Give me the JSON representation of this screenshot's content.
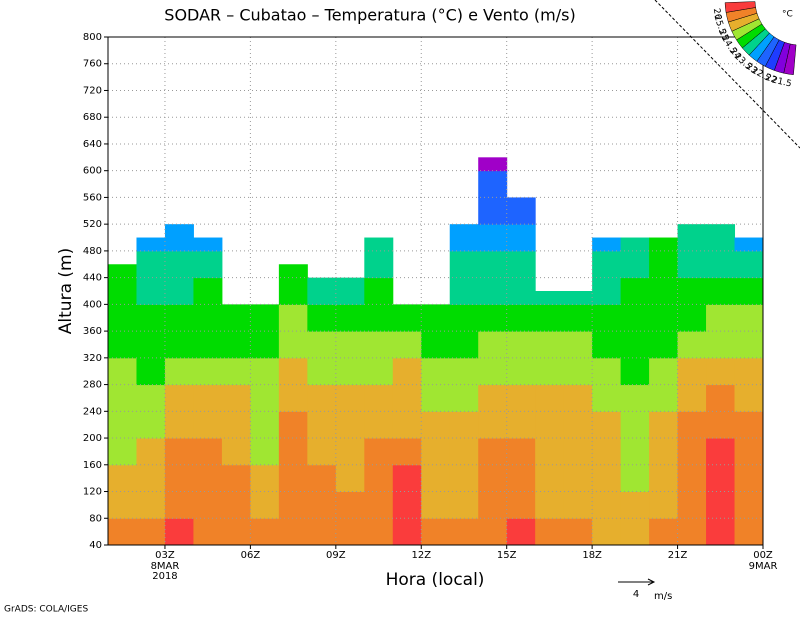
{
  "chart_data": {
    "type": "heatmap",
    "title": "SODAR – Cubatao – Temperatura (°C) e Vento (m/s)",
    "x_label": "Hora (local)",
    "y_label": "Altura (m)",
    "xlim": [
      1,
      24
    ],
    "ylim": [
      40,
      800
    ],
    "xticks": [
      {
        "value": 3,
        "label": "03Z"
      },
      {
        "value": 6,
        "label": "06Z"
      },
      {
        "value": 9,
        "label": "09Z"
      },
      {
        "value": 12,
        "label": "12Z"
      },
      {
        "value": 15,
        "label": "15Z"
      },
      {
        "value": 18,
        "label": "18Z"
      },
      {
        "value": 21,
        "label": "21Z"
      },
      {
        "value": 24,
        "label": "00Z"
      }
    ],
    "x_date_labels": [
      {
        "value": 3,
        "lines": [
          "8MAR",
          "2018"
        ]
      },
      {
        "value": 24,
        "lines": [
          "9MAR"
        ]
      }
    ],
    "yticks": [
      40,
      80,
      120,
      160,
      200,
      240,
      280,
      320,
      360,
      400,
      440,
      480,
      520,
      560,
      600,
      640,
      680,
      720,
      760,
      800
    ],
    "grid": true,
    "x_bins": [
      1,
      2,
      3,
      4,
      5,
      6,
      7,
      8,
      9,
      10,
      11,
      12,
      13,
      14,
      15,
      16,
      17,
      18,
      19,
      20,
      21,
      22,
      23,
      24
    ],
    "y_bins": [
      40,
      80,
      120,
      160,
      200,
      240,
      280,
      320,
      360,
      400,
      440,
      480,
      520,
      560,
      600,
      640
    ],
    "tops": [
      460,
      500,
      520,
      500,
      400,
      400,
      460,
      440,
      440,
      500,
      400,
      400,
      520,
      620,
      560,
      420,
      420,
      500,
      500,
      500,
      520,
      520,
      500
    ],
    "z": [
      [
        25.6,
        25.7,
        26.1,
        25.8,
        25.7,
        25.8,
        25.8,
        25.7,
        25.6,
        25.8,
        26.1,
        25.7,
        25.7,
        25.8,
        26.1,
        25.7,
        25.6,
        25.3,
        25.3,
        25.7,
        25.9,
        26.2,
        25.8
      ],
      [
        25.4,
        25.3,
        25.6,
        25.7,
        25.6,
        25.4,
        25.6,
        25.6,
        25.5,
        25.7,
        26.1,
        25.4,
        25.4,
        25.6,
        25.7,
        25.4,
        25.3,
        25.1,
        25.1,
        25.4,
        25.8,
        26.2,
        25.7
      ],
      [
        25.2,
        25.2,
        25.6,
        25.6,
        25.5,
        25.2,
        25.6,
        25.5,
        25.4,
        25.6,
        26.1,
        25.3,
        25.3,
        25.6,
        25.7,
        25.4,
        25.3,
        25.1,
        24.8,
        25.3,
        25.7,
        26.2,
        25.8
      ],
      [
        24.9,
        25.1,
        25.5,
        25.6,
        25.3,
        24.9,
        25.6,
        25.4,
        25.3,
        25.5,
        25.8,
        25.3,
        25.3,
        25.5,
        25.6,
        25.3,
        25.3,
        25.2,
        24.8,
        25.3,
        25.6,
        26.1,
        25.7
      ],
      [
        24.8,
        24.9,
        25.2,
        25.4,
        25.2,
        24.8,
        25.5,
        25.3,
        25.2,
        25.3,
        25.4,
        25.2,
        25.1,
        25.2,
        25.3,
        25.2,
        25.1,
        25.1,
        24.7,
        25.2,
        25.5,
        25.6,
        25.6
      ],
      [
        24.7,
        24.6,
        25.0,
        25.2,
        25.1,
        24.7,
        25.4,
        25.2,
        25.1,
        25.1,
        25.2,
        24.8,
        24.9,
        25.1,
        25.2,
        25.1,
        25.0,
        24.9,
        24.6,
        24.9,
        25.3,
        25.5,
        25.4
      ],
      [
        24.5,
        24.3,
        24.6,
        24.8,
        24.7,
        24.6,
        25.2,
        24.9,
        24.8,
        24.9,
        25.1,
        24.6,
        24.7,
        24.8,
        24.8,
        24.8,
        24.7,
        24.7,
        24.4,
        24.7,
        25.0,
        25.2,
        25.1
      ],
      [
        24.3,
        24.2,
        24.3,
        24.4,
        24.4,
        24.4,
        24.9,
        24.6,
        24.5,
        24.6,
        24.8,
        24.4,
        24.4,
        24.5,
        24.5,
        24.5,
        24.5,
        24.4,
        24.3,
        24.4,
        24.6,
        24.8,
        24.8
      ],
      [
        24.2,
        24.1,
        24.2,
        24.2,
        24.2,
        24.3,
        24.6,
        24.2,
        24.1,
        24.2,
        24.4,
        24.2,
        24.1,
        24.2,
        24.2,
        24.2,
        24.1,
        24.1,
        24.1,
        24.2,
        24.3,
        24.5,
        24.5
      ],
      [
        24.1,
        23.9,
        23.9,
        24.0,
        null,
        null,
        24.2,
        23.9,
        23.9,
        24.1,
        null,
        null,
        23.9,
        23.9,
        23.9,
        23.9,
        23.9,
        23.9,
        24.0,
        24.1,
        24.1,
        24.1,
        24.2
      ],
      [
        24.0,
        23.7,
        23.7,
        23.8,
        null,
        null,
        24.0,
        null,
        null,
        23.8,
        null,
        null,
        23.7,
        23.6,
        23.6,
        null,
        null,
        23.7,
        23.9,
        24.0,
        23.8,
        23.8,
        23.9
      ],
      [
        null,
        23.4,
        23.4,
        23.4,
        null,
        null,
        null,
        null,
        null,
        23.7,
        null,
        null,
        23.4,
        23.3,
        23.3,
        null,
        null,
        23.4,
        23.7,
        24.0,
        23.6,
        23.7,
        23.4
      ],
      [
        null,
        null,
        null,
        null,
        null,
        null,
        null,
        null,
        null,
        null,
        null,
        null,
        null,
        22.8,
        22.8,
        null,
        null,
        null,
        null,
        null,
        null,
        null,
        null
      ],
      [
        null,
        null,
        null,
        null,
        null,
        null,
        null,
        null,
        null,
        null,
        null,
        null,
        null,
        22.6,
        null,
        null,
        null,
        null,
        null,
        null,
        null,
        null,
        null
      ],
      [
        null,
        null,
        null,
        null,
        null,
        null,
        null,
        null,
        null,
        null,
        null,
        null,
        null,
        21.4,
        null,
        null,
        null,
        null,
        null,
        null,
        null,
        null,
        null
      ]
    ],
    "levels": [
      21.5,
      22,
      22.5,
      23,
      23.5,
      24,
      24.5,
      25,
      25.5,
      26
    ],
    "colors": [
      "#a000c8",
      "#8200dc",
      "#1e3cff",
      "#1e64ff",
      "#00a0ff",
      "#00d28c",
      "#00dc00",
      "#a0e632",
      "#e6af2d",
      "#f08228",
      "#fa3c3c"
    ],
    "legend_unit": "°C",
    "wind_scale": {
      "value": 4,
      "unit": "m/s"
    },
    "credit": "GrADS: COLA/IGES"
  }
}
